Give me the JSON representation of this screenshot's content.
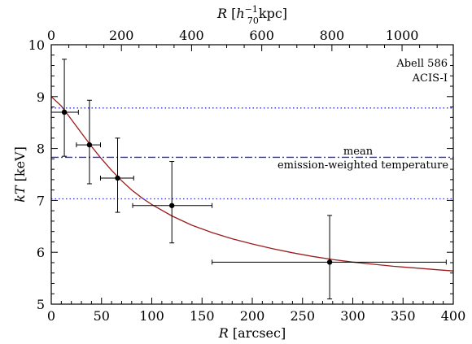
{
  "chart_data": {
    "type": "scatter",
    "annotation": {
      "line1": "Abell 586",
      "line2": "ACIS-I"
    },
    "mean_label": {
      "line1": "mean",
      "line2": "emission-weighted temperature"
    },
    "xlabel": {
      "italic": "R",
      "rest": " [arcsec]"
    },
    "ylabel": {
      "italic": "kT",
      "rest": " [keV]"
    },
    "top_xlabel": {
      "italic": "R",
      "rest_bracket_open": " [",
      "h": "h",
      "h_sup": "−1",
      "h_sub": "70",
      "rest": "kpc]"
    },
    "xlim": [
      0,
      400
    ],
    "ylim": [
      5,
      10
    ],
    "x_ticks": [
      0,
      50,
      100,
      150,
      200,
      250,
      300,
      350,
      400
    ],
    "y_ticks": [
      5,
      6,
      7,
      8,
      9,
      10
    ],
    "top_xlim": [
      0,
      1146
    ],
    "top_ticks": [
      0,
      200,
      400,
      600,
      800,
      1000
    ],
    "data_points": [
      {
        "x": 13,
        "y": 8.7,
        "xerr": [
          0,
          27
        ],
        "yerr": [
          7.85,
          9.72
        ]
      },
      {
        "x": 38,
        "y": 8.07,
        "xerr": [
          25,
          49
        ],
        "yerr": [
          7.32,
          8.93
        ]
      },
      {
        "x": 66,
        "y": 7.43,
        "xerr": [
          49,
          82
        ],
        "yerr": [
          6.77,
          8.2
        ]
      },
      {
        "x": 120,
        "y": 6.9,
        "xerr": [
          81,
          160
        ],
        "yerr": [
          6.18,
          7.75
        ]
      },
      {
        "x": 277,
        "y": 5.81,
        "xerr": [
          160,
          393
        ],
        "yerr": [
          5.1,
          6.71
        ]
      }
    ],
    "reference_lines": {
      "mean": 7.83,
      "upper": 8.78,
      "lower": 7.03
    },
    "model_curve": {
      "x": [
        0,
        10,
        20,
        30,
        40,
        50,
        60,
        70,
        80,
        90,
        100,
        120,
        140,
        160,
        180,
        200,
        220,
        240,
        260,
        280,
        300,
        320,
        340,
        360,
        380,
        400
      ],
      "y": [
        9.0,
        8.82,
        8.56,
        8.3,
        8.04,
        7.8,
        7.58,
        7.38,
        7.2,
        7.05,
        6.92,
        6.7,
        6.52,
        6.38,
        6.26,
        6.16,
        6.07,
        5.99,
        5.92,
        5.86,
        5.81,
        5.77,
        5.73,
        5.7,
        5.67,
        5.64
      ]
    },
    "colors": {
      "curve": "#9b1c1c",
      "reference": "#2b2bd8",
      "points": "#000000"
    },
    "grid": false
  }
}
